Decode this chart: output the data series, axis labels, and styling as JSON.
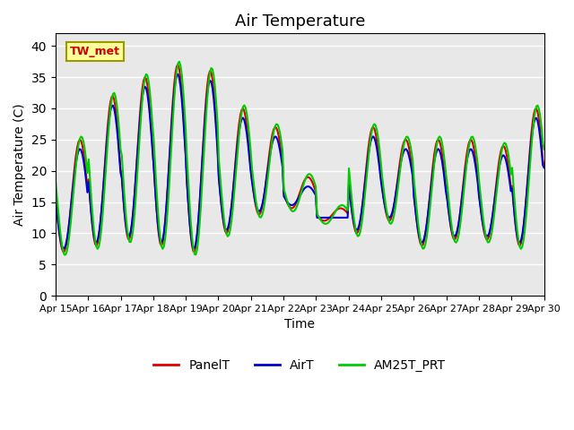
{
  "title": "Air Temperature",
  "xlabel": "Time",
  "ylabel": "Air Temperature (C)",
  "ylim": [
    0,
    42
  ],
  "yticks": [
    0,
    5,
    10,
    15,
    20,
    25,
    30,
    35,
    40
  ],
  "background_color": "#e8e8e8",
  "annotation_text": "TW_met",
  "annotation_color": "#cc0000",
  "annotation_bg": "#ffff99",
  "annotation_border": "#999900",
  "series": {
    "PanelT": {
      "color": "#dd0000",
      "lw": 1.5
    },
    "AirT": {
      "color": "#0000cc",
      "lw": 1.5
    },
    "AM25T_PRT": {
      "color": "#00cc00",
      "lw": 1.5
    }
  },
  "xtick_labels": [
    "Apr 15",
    "Apr 16",
    "Apr 17",
    "Apr 18",
    "Apr 19",
    "Apr 20",
    "Apr 21",
    "Apr 22",
    "Apr 23",
    "Apr 24",
    "Apr 25",
    "Apr 26",
    "Apr 27",
    "Apr 28",
    "Apr 29",
    "Apr 30"
  ],
  "legend_loc": "lower center",
  "title_fontsize": 13
}
